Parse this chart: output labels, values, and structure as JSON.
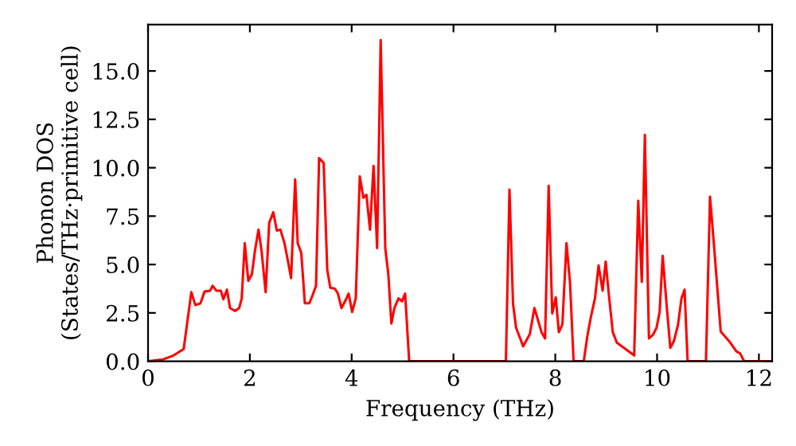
{
  "chart_data": {
    "type": "line",
    "xlabel": "Frequency (THz)",
    "ylabel": "Phonon DOS\n(States/THz·primitive cell)",
    "x": [
      0,
      0.3,
      0.5,
      0.7,
      0.85,
      0.93,
      1.03,
      1.11,
      1.22,
      1.27,
      1.34,
      1.43,
      1.48,
      1.55,
      1.61,
      1.71,
      1.79,
      1.84,
      1.9,
      1.97,
      2.04,
      2.1,
      2.17,
      2.23,
      2.31,
      2.38,
      2.46,
      2.53,
      2.6,
      2.68,
      2.75,
      2.81,
      2.89,
      2.94,
      3.01,
      3.08,
      3.17,
      3.23,
      3.3,
      3.36,
      3.45,
      3.52,
      3.58,
      3.67,
      3.73,
      3.8,
      3.88,
      3.94,
      4.01,
      4.08,
      4.16,
      4.23,
      4.29,
      4.36,
      4.43,
      4.5,
      4.57,
      4.66,
      4.72,
      4.78,
      4.84,
      4.92,
      4.99,
      5.05,
      5.13,
      7.03,
      7.1,
      7.17,
      7.23,
      7.37,
      7.5,
      7.59,
      7.73,
      7.8,
      7.87,
      7.94,
      8.01,
      8.07,
      8.14,
      8.22,
      8.29,
      8.36,
      8.56,
      8.63,
      8.7,
      8.78,
      8.85,
      8.93,
      8.99,
      9.06,
      9.13,
      9.21,
      9.55,
      9.63,
      9.7,
      9.76,
      9.84,
      9.92,
      9.99,
      10.05,
      10.11,
      10.19,
      10.26,
      10.33,
      10.41,
      10.48,
      10.54,
      10.6,
      10.96,
      11.04,
      11.11,
      11.25,
      11.43,
      11.56,
      11.63,
      11.71,
      12.26
    ],
    "series": [
      {
        "color": "#ff0000",
        "values": [
          0,
          0.1,
          0.3,
          0.63,
          3.57,
          2.9,
          3.0,
          3.6,
          3.65,
          3.9,
          3.65,
          3.65,
          3.2,
          3.7,
          2.75,
          2.6,
          2.75,
          3.25,
          6.1,
          4.15,
          4.5,
          5.7,
          6.8,
          5.7,
          3.57,
          7.15,
          7.7,
          6.75,
          6.8,
          6.1,
          5.15,
          4.3,
          9.4,
          6.1,
          5.6,
          3.0,
          3.0,
          3.4,
          3.9,
          10.5,
          10.25,
          4.75,
          3.8,
          3.75,
          3.5,
          2.75,
          3.15,
          3.5,
          2.55,
          3.25,
          9.55,
          8.45,
          8.6,
          6.8,
          10.1,
          5.85,
          16.6,
          5.85,
          4.5,
          1.95,
          2.75,
          3.25,
          3.1,
          3.5,
          0,
          0,
          8.87,
          2.97,
          1.73,
          0.77,
          1.4,
          2.75,
          1.5,
          1.18,
          9.07,
          2.47,
          3.3,
          1.5,
          1.9,
          6.1,
          4.05,
          0,
          0,
          1.3,
          2.3,
          3.25,
          4.95,
          3.65,
          5.15,
          3.25,
          1.5,
          0.96,
          0.3,
          8.3,
          4.1,
          11.7,
          1.18,
          1.37,
          1.73,
          2.55,
          5.45,
          2.83,
          0.69,
          1.04,
          1.87,
          3.25,
          3.7,
          0,
          0,
          8.5,
          6.25,
          1.54,
          0.99,
          0.5,
          0.41,
          0,
          0
        ]
      }
    ],
    "xlim": [
      0,
      12.26
    ],
    "ylim": [
      0,
      17.4
    ],
    "xticks": [
      0,
      2,
      4,
      6,
      8,
      10,
      12
    ],
    "yticks": [
      {
        "value": 0,
        "label": "0.0"
      },
      2.5,
      {
        "value": 5,
        "label": "5.0"
      },
      7.5,
      {
        "value": 10,
        "label": "10.0"
      },
      12.5,
      {
        "value": 15,
        "label": "15.0"
      }
    ],
    "grid": false,
    "legend": false,
    "marker": "none",
    "line_style": "solid"
  }
}
